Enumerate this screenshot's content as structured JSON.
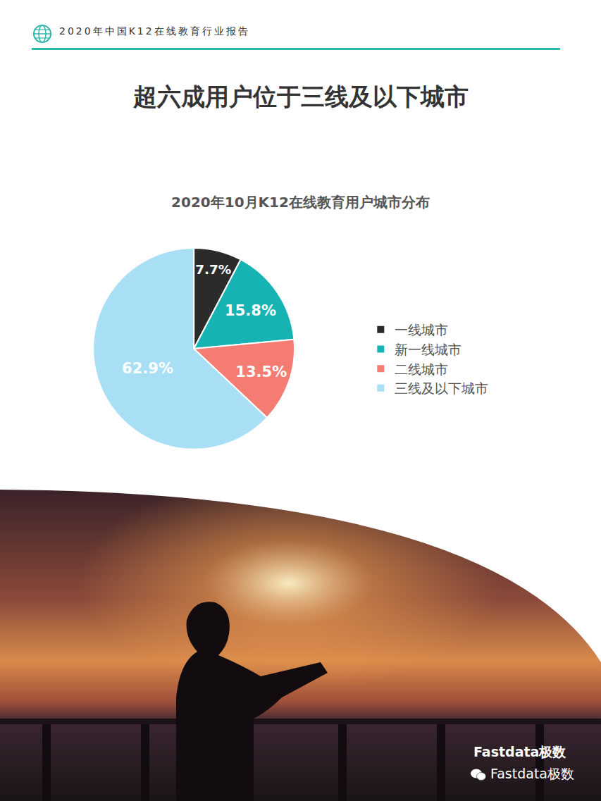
{
  "header": "2020年中国K12在线教育行业报告",
  "page_title": "超六成用户位于三线及以下城市",
  "chart_data": {
    "type": "pie",
    "title": "2020年10月K12在线教育用户城市分布",
    "categories": [
      "一线城市",
      "新一线城市",
      "二线城市",
      "三线及以下城市"
    ],
    "values": [
      7.7,
      15.8,
      13.5,
      62.9
    ],
    "value_labels": [
      "7.7%",
      "15.8%",
      "13.5%",
      "62.9%"
    ],
    "colors": [
      "#2b2b2b",
      "#17b3b3",
      "#f47c72",
      "#a8dff5"
    ],
    "data_labels": true,
    "legend": "right"
  },
  "footer": {
    "brand": "Fastdata极数",
    "wechat": "Fastdata极数"
  }
}
